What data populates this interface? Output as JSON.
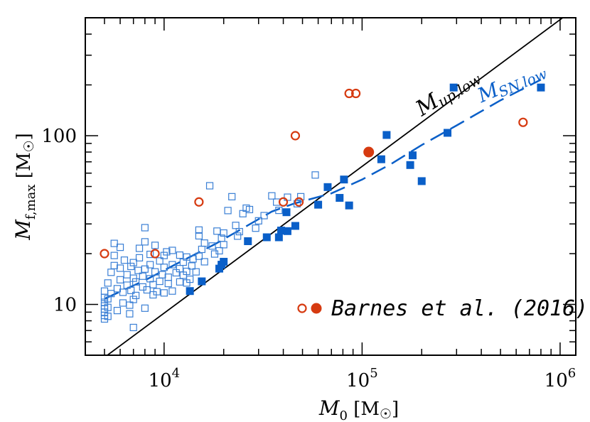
{
  "chart_data": {
    "type": "scatter",
    "title": "",
    "xlabel": {
      "symbol": "M",
      "sub": "0",
      "unit": "[M",
      "unit_close": "]",
      "unit_symbol": "☉"
    },
    "ylabel": {
      "symbol": "M",
      "sub": "f,max",
      "unit": "[M",
      "unit_close": "]",
      "unit_symbol": "☉"
    },
    "xscale": "log",
    "yscale": "log",
    "xlim": [
      4000,
      1200000
    ],
    "ylim": [
      5,
      500
    ],
    "x_ticks": [
      {
        "value": 10000,
        "base": "10",
        "exp": "4"
      },
      {
        "value": 100000,
        "base": "10",
        "exp": "5"
      },
      {
        "value": 1000000,
        "base": "10",
        "exp": "6"
      }
    ],
    "y_ticks": [
      {
        "value": 10,
        "label": "10"
      },
      {
        "value": 100,
        "label": "100"
      }
    ],
    "grid": false,
    "lines": [
      {
        "name": "M_up,low",
        "label_main": "M",
        "label_sub": "up,low",
        "style": "solid",
        "color": "#000000",
        "points": [
          [
            4000,
            4.0
          ],
          [
            1200000,
            571
          ]
        ]
      },
      {
        "name": "M_SN,low",
        "label_main": "M",
        "label_sub": "SN,low",
        "style": "dashed",
        "color": "#0a5fc8",
        "points": [
          [
            5000,
            10.8
          ],
          [
            8000,
            13.9
          ],
          [
            12000,
            17.8
          ],
          [
            18000,
            22.7
          ],
          [
            25000,
            28.3
          ],
          [
            35000,
            35.5
          ],
          [
            45000,
            39.5
          ],
          [
            70000,
            45.5
          ],
          [
            100000,
            55
          ],
          [
            140000,
            68
          ],
          [
            200000,
            88
          ],
          [
            300000,
            115
          ],
          [
            500000,
            162
          ],
          [
            800000,
            215
          ]
        ]
      }
    ],
    "series": [
      {
        "name": "open-blue-squares",
        "marker": "square-open",
        "color": "#3a7fd5",
        "points": [
          [
            5000,
            8.2
          ],
          [
            5000,
            8.6
          ],
          [
            5000,
            9
          ],
          [
            5000,
            9.4
          ],
          [
            5000,
            9.8
          ],
          [
            5000,
            10.3
          ],
          [
            5000,
            11
          ],
          [
            5000,
            12
          ],
          [
            5200,
            8.5
          ],
          [
            5200,
            9.6
          ],
          [
            5200,
            10.8
          ],
          [
            5200,
            13.4
          ],
          [
            5400,
            11.6
          ],
          [
            5400,
            15.5
          ],
          [
            5600,
            17
          ],
          [
            5600,
            19.5
          ],
          [
            5600,
            23
          ],
          [
            5800,
            9.2
          ],
          [
            5800,
            12.4
          ],
          [
            6000,
            14
          ],
          [
            6000,
            16.4
          ],
          [
            6000,
            21.8
          ],
          [
            6200,
            10.2
          ],
          [
            6200,
            11.8
          ],
          [
            6300,
            18.3
          ],
          [
            6500,
            13
          ],
          [
            6500,
            15
          ],
          [
            6700,
            8.8
          ],
          [
            6700,
            9.9
          ],
          [
            6800,
            12.1
          ],
          [
            6800,
            16.8
          ],
          [
            7000,
            7.3
          ],
          [
            7000,
            10.7
          ],
          [
            7000,
            14.3
          ],
          [
            7000,
            17.7
          ],
          [
            7200,
            11.3
          ],
          [
            7200,
            13.6
          ],
          [
            7400,
            15.9
          ],
          [
            7500,
            18.9
          ],
          [
            7500,
            21.5
          ],
          [
            7800,
            12.7
          ],
          [
            7800,
            14.7
          ],
          [
            8000,
            9.5
          ],
          [
            8000,
            16.2
          ],
          [
            8000,
            23.5
          ],
          [
            8000,
            28.5
          ],
          [
            8200,
            12.2
          ],
          [
            8500,
            14.2
          ],
          [
            8500,
            17.2
          ],
          [
            8500,
            19.8
          ],
          [
            8800,
            11.4
          ],
          [
            8800,
            13.1
          ],
          [
            9000,
            15.6
          ],
          [
            9000,
            22.4
          ],
          [
            9200,
            11.9
          ],
          [
            9500,
            13.7
          ],
          [
            9500,
            18.1
          ],
          [
            9800,
            15
          ],
          [
            10000,
            11.7
          ],
          [
            10000,
            16.6
          ],
          [
            10000,
            19.5
          ],
          [
            10300,
            20.5
          ],
          [
            10500,
            13.3
          ],
          [
            10500,
            14.5
          ],
          [
            11000,
            12
          ],
          [
            11000,
            17.2
          ],
          [
            11000,
            20.9
          ],
          [
            11500,
            15.4
          ],
          [
            12000,
            13.6
          ],
          [
            12000,
            16.3
          ],
          [
            12000,
            19.6
          ],
          [
            12500,
            14.9
          ],
          [
            12500,
            17.8
          ],
          [
            13000,
            13.4
          ],
          [
            13000,
            15.7
          ],
          [
            13000,
            19.1
          ],
          [
            13500,
            14.1
          ],
          [
            13800,
            16.9
          ],
          [
            14000,
            18.6
          ],
          [
            14500,
            15.6
          ],
          [
            15000,
            19.3
          ],
          [
            15000,
            25.5
          ],
          [
            15000,
            27.6
          ],
          [
            15500,
            21.2
          ],
          [
            16000,
            17.9
          ],
          [
            16000,
            23.1
          ],
          [
            17000,
            50.5
          ],
          [
            17500,
            22.2
          ],
          [
            18000,
            19.9
          ],
          [
            18500,
            27.2
          ],
          [
            19000,
            20.8
          ],
          [
            19500,
            24.7
          ],
          [
            20000,
            22.6
          ],
          [
            20000,
            26.5
          ],
          [
            21000,
            36
          ],
          [
            22000,
            43.5
          ],
          [
            23000,
            29.4
          ],
          [
            23500,
            25.4
          ],
          [
            24000,
            27
          ],
          [
            25000,
            34.5
          ],
          [
            26000,
            37.2
          ],
          [
            27000,
            36.5
          ],
          [
            29000,
            28.3
          ],
          [
            30000,
            31.3
          ],
          [
            32000,
            33.6
          ],
          [
            35000,
            44
          ],
          [
            37000,
            40.4
          ],
          [
            38000,
            36.1
          ],
          [
            42000,
            43.2
          ],
          [
            47000,
            39.5
          ],
          [
            49000,
            43.5
          ],
          [
            58000,
            58.5
          ]
        ]
      },
      {
        "name": "filled-blue-squares",
        "marker": "square-filled",
        "color": "#0a5fc8",
        "points": [
          [
            13500,
            12
          ],
          [
            15500,
            13.7
          ],
          [
            19000,
            16.3
          ],
          [
            19500,
            17.2
          ],
          [
            20000,
            17.9
          ],
          [
            26500,
            23.7
          ],
          [
            33000,
            25
          ],
          [
            38000,
            25
          ],
          [
            39000,
            27.4
          ],
          [
            42000,
            27.2
          ],
          [
            41500,
            35.2
          ],
          [
            46000,
            29.2
          ],
          [
            60000,
            39
          ],
          [
            67000,
            49.6
          ],
          [
            77000,
            42.8
          ],
          [
            81000,
            55
          ],
          [
            86000,
            38.6
          ],
          [
            125000,
            72.5
          ],
          [
            133000,
            101
          ],
          [
            175000,
            67
          ],
          [
            180000,
            76.5
          ],
          [
            200000,
            53.8
          ],
          [
            270000,
            104
          ],
          [
            290000,
            193
          ],
          [
            800000,
            193
          ]
        ]
      },
      {
        "name": "Barnes et al. (2016) open",
        "marker": "circle-open",
        "color": "#d63a10",
        "points": [
          [
            5000,
            20
          ],
          [
            9000,
            20
          ],
          [
            15000,
            40.5
          ],
          [
            40000,
            40.5
          ],
          [
            46000,
            100
          ],
          [
            48000,
            40.5
          ],
          [
            86000,
            178
          ],
          [
            93000,
            178
          ],
          [
            650000,
            120
          ]
        ]
      },
      {
        "name": "Barnes et al. (2016) filled",
        "marker": "circle-filled",
        "color": "#d63a10",
        "points": [
          [
            108000,
            80
          ]
        ]
      }
    ],
    "legend": {
      "position": "bottom-right",
      "text": "Barnes et al. (2016)",
      "open_color": "#d63a10",
      "filled_color": "#d63a10"
    }
  }
}
